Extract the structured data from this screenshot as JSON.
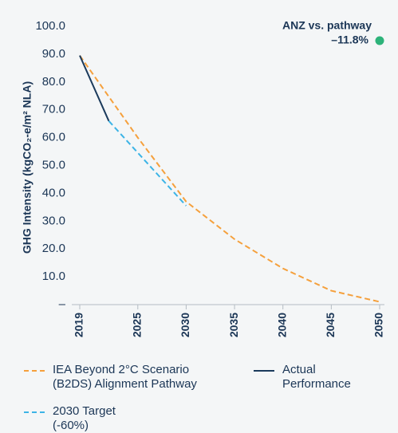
{
  "chart_data": {
    "type": "line",
    "y_label": "GHG Intensity (kgCO₂-e/m² NLA)",
    "annotation": {
      "title": "ANZ vs. pathway",
      "value": "–11.8%",
      "color": "#2db37a"
    },
    "xlim": [
      2019,
      2050
    ],
    "xticks": [
      2019,
      2025,
      2030,
      2035,
      2040,
      2045,
      2050
    ],
    "ylim": [
      0,
      100
    ],
    "yticks": [
      {
        "value": 0,
        "label": "–"
      },
      {
        "value": 10,
        "label": "10.0"
      },
      {
        "value": 20,
        "label": "20.0"
      },
      {
        "value": 30,
        "label": "30.0"
      },
      {
        "value": 40,
        "label": "40.0"
      },
      {
        "value": 50,
        "label": "50.0"
      },
      {
        "value": 60,
        "label": "60.0"
      },
      {
        "value": 70,
        "label": "70.0"
      },
      {
        "value": 80,
        "label": "80.0"
      },
      {
        "value": 90,
        "label": "90.0"
      },
      {
        "value": 100,
        "label": "100.0"
      }
    ],
    "series": [
      {
        "name": "IEA Beyond 2°C Scenario (B2DS) Alignment Pathway",
        "color": "#f5a03c",
        "dash": true,
        "x": [
          2019,
          2025,
          2030,
          2035,
          2040,
          2045,
          2050
        ],
        "values": [
          89.5,
          60,
          37,
          23.5,
          13,
          5,
          1
        ]
      },
      {
        "name": "Actual Performance",
        "color": "#1a3a5c",
        "dash": false,
        "x": [
          2019,
          2022
        ],
        "values": [
          89.5,
          66
        ]
      },
      {
        "name": "2030 Target (-60%)",
        "color": "#3cb4e6",
        "dash": true,
        "x": [
          2022,
          2030
        ],
        "values": [
          66,
          35.5
        ]
      }
    ]
  }
}
